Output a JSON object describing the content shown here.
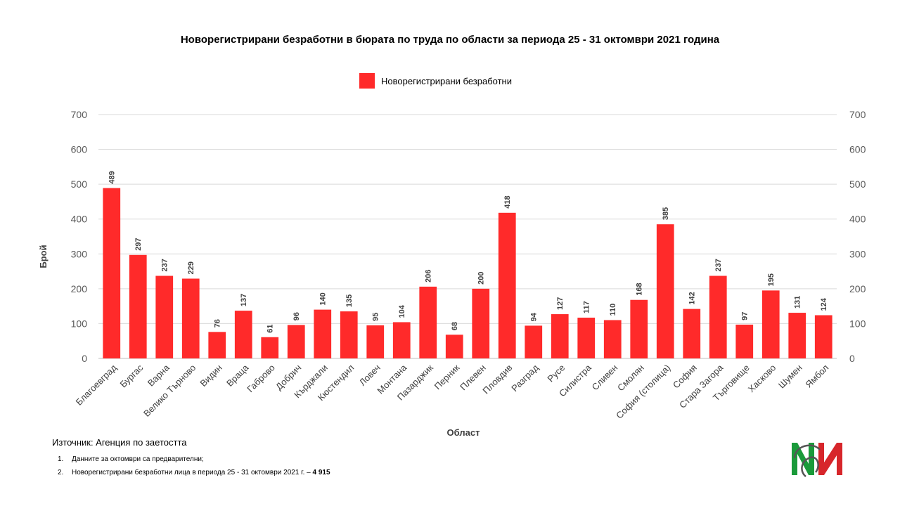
{
  "chart_data": {
    "type": "bar",
    "title": "Новорегистрирани безработни в бюрата по труда по области за периода 25 - 31 октомври 2021 година",
    "xlabel": "Област",
    "ylabel": "Брой",
    "ylim": [
      0,
      700
    ],
    "yticks": [
      0,
      100,
      200,
      300,
      400,
      500,
      600,
      700
    ],
    "secondary_yaxis": true,
    "grid": true,
    "legend_position": "top",
    "categories": [
      "Благоевград",
      "Бургас",
      "Варна",
      "Велико Търново",
      "Видин",
      "Враца",
      "Габрово",
      "Добрич",
      "Кърджали",
      "Кюстендил",
      "Ловеч",
      "Монтана",
      "Пазарджик",
      "Перник",
      "Плевен",
      "Пловдив",
      "Разград",
      "Русе",
      "Силистра",
      "Сливен",
      "Смолян",
      "София (столица)",
      "София",
      "Стара Загора",
      "Търговище",
      "Хасково",
      "Шумен",
      "Ямбол"
    ],
    "series": [
      {
        "name": "Новорегистрирани безработни",
        "color": "#ff2a2a",
        "values": [
          489,
          297,
          237,
          229,
          76,
          137,
          61,
          96,
          140,
          135,
          95,
          104,
          206,
          68,
          200,
          418,
          94,
          127,
          117,
          110,
          168,
          385,
          142,
          237,
          97,
          195,
          131,
          124
        ]
      }
    ]
  },
  "footer": {
    "source": "Източник: Агенция по заетостта",
    "notes": [
      {
        "num": "1.",
        "text": "Данните за октомври са предварителни;",
        "bold": ""
      },
      {
        "num": "2.",
        "text": "Новорегистрирани безработни лица в периода 25 - 31 октомври 2021 г. – ",
        "bold": "4 915"
      }
    ]
  },
  "logo": {
    "icon": "nsi-logo-icon",
    "colors": [
      "#1a9a3a",
      "#d7262b",
      "#555555"
    ]
  }
}
